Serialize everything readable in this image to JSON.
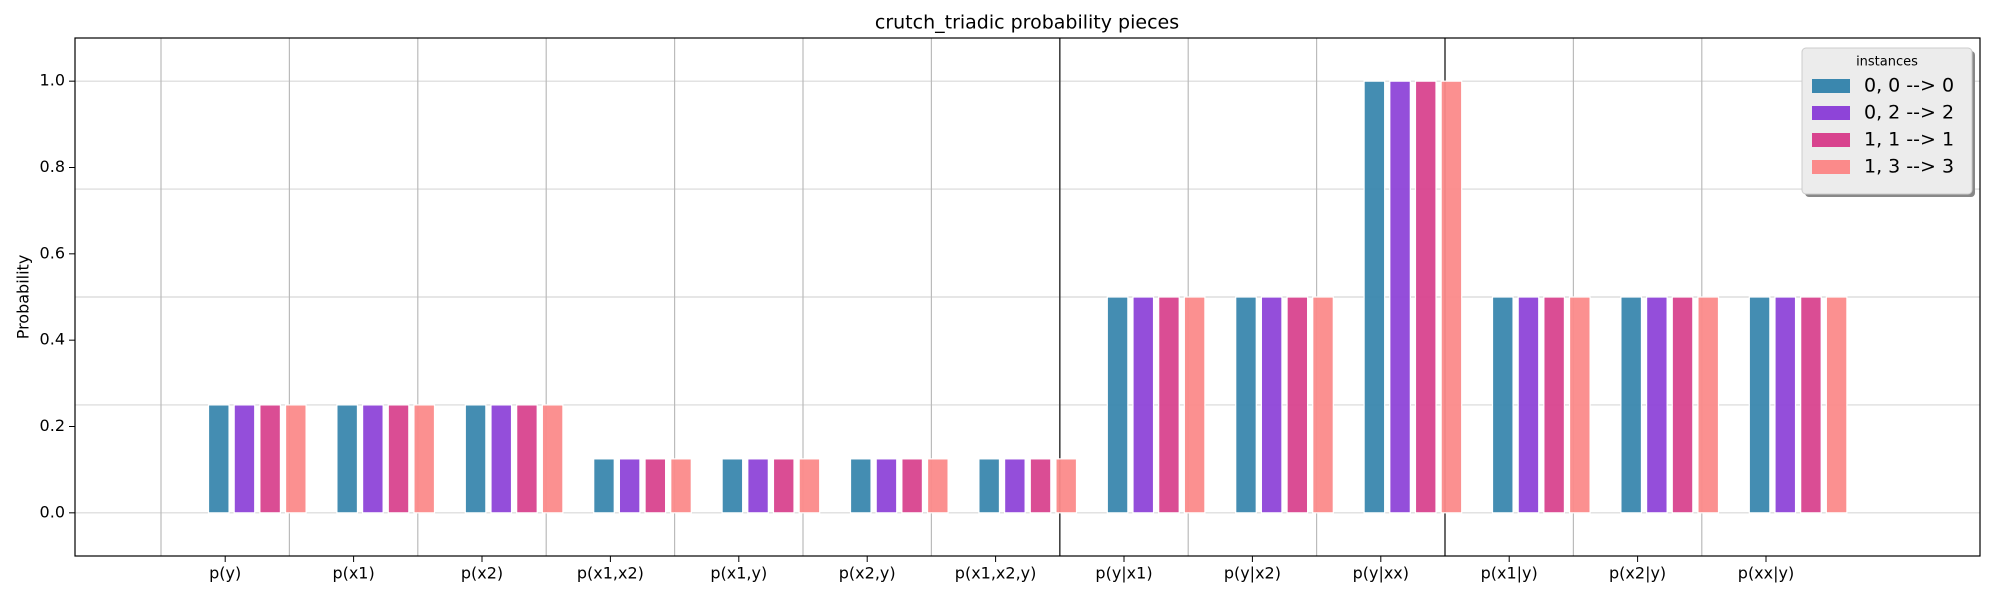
{
  "chart_data": {
    "type": "bar",
    "title": "crutch_triadic probability pieces",
    "y_label": "Probability",
    "categories": [
      "p(y)",
      "p(x1)",
      "p(x2)",
      "p(x1,x2)",
      "p(x1,y)",
      "p(x2,y)",
      "p(x1,x2,y)",
      "p(y|x1)",
      "p(y|x2)",
      "p(y|xx)",
      "p(x1|y)",
      "p(x2|y)",
      "p(xx|y)"
    ],
    "series": [
      {
        "name": "0, 0 --> 0",
        "color": "#3a87ae",
        "values": [
          0.25,
          0.25,
          0.25,
          0.125,
          0.125,
          0.125,
          0.125,
          0.5,
          0.5,
          1.0,
          0.5,
          0.5,
          0.5
        ]
      },
      {
        "name": "0, 2 --> 2",
        "color": "#8e44d8",
        "values": [
          0.25,
          0.25,
          0.25,
          0.125,
          0.125,
          0.125,
          0.125,
          0.5,
          0.5,
          1.0,
          0.5,
          0.5,
          0.5
        ]
      },
      {
        "name": "1, 1 --> 1",
        "color": "#d8438e",
        "values": [
          0.25,
          0.25,
          0.25,
          0.125,
          0.125,
          0.125,
          0.125,
          0.5,
          0.5,
          1.0,
          0.5,
          0.5,
          0.5
        ]
      },
      {
        "name": "1, 3 --> 3",
        "color": "#fb8a8a",
        "values": [
          0.25,
          0.25,
          0.25,
          0.125,
          0.125,
          0.125,
          0.125,
          0.5,
          0.5,
          1.0,
          0.5,
          0.5,
          0.5
        ]
      }
    ],
    "ylim": [
      -0.1,
      1.1
    ],
    "yticks": [
      {
        "value": 0,
        "label": "0.0"
      },
      0.2,
      0.4,
      0.6,
      0.8,
      {
        "value": 1,
        "label": "1.0"
      }
    ],
    "ygrid": [
      0,
      0.25,
      0.5,
      0.75,
      1.0
    ],
    "legend_title": "instances",
    "legend": "upper right"
  }
}
